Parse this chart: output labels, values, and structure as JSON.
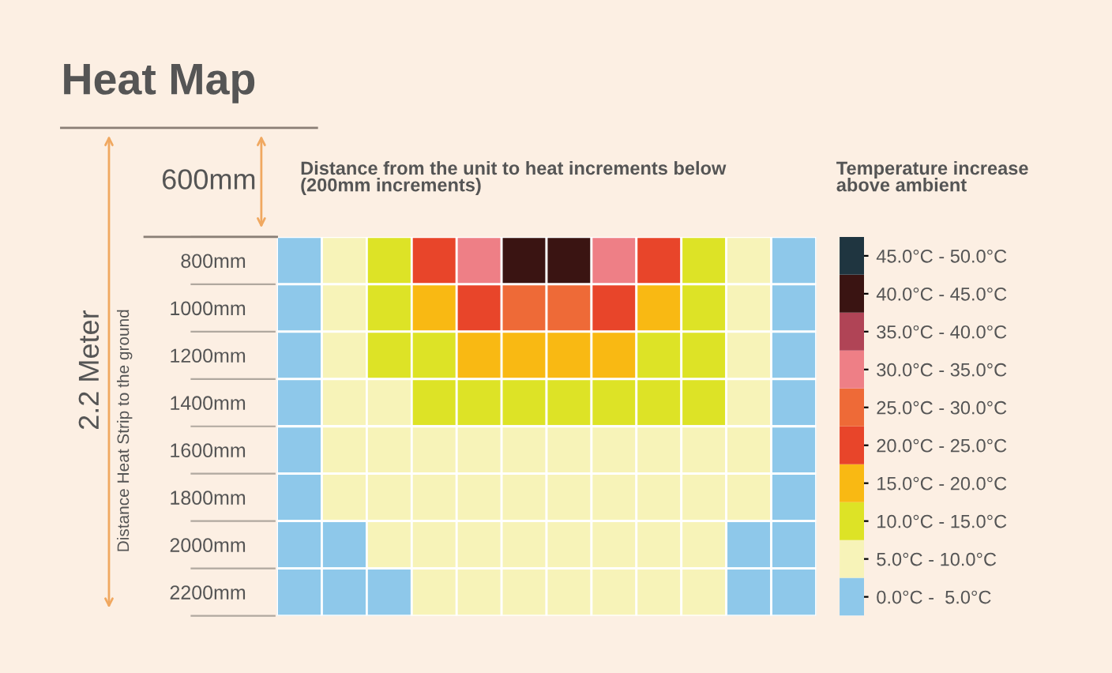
{
  "chart_data": {
    "type": "heatmap",
    "title": "Heat Map",
    "subtitle": "Distance from the unit to heat increments below\n(200mm increments)",
    "ylabel": "Distance Heat Strip to the ground",
    "clabel": "Temperature increase\nabove ambient",
    "annotations": [
      "600mm",
      "2.2 Meter"
    ],
    "categories": [
      null,
      null,
      null,
      null,
      null,
      null,
      null,
      null,
      null,
      null,
      null,
      null
    ],
    "y_categories": [
      "800mm",
      "1000mm",
      "1200mm",
      "1400mm",
      "1600mm",
      "1800mm",
      "2000mm",
      "2200mm"
    ],
    "cells": [
      [
        2.5,
        7.5,
        12.5,
        22.5,
        32.5,
        42.5,
        42.5,
        32.5,
        22.5,
        12.5,
        7.5,
        2.5
      ],
      [
        2.5,
        7.5,
        12.5,
        17.5,
        22.5,
        27.5,
        27.5,
        22.5,
        17.5,
        12.5,
        7.5,
        2.5
      ],
      [
        2.5,
        7.5,
        12.5,
        12.5,
        17.5,
        17.5,
        17.5,
        17.5,
        12.5,
        12.5,
        7.5,
        2.5
      ],
      [
        2.5,
        7.5,
        7.5,
        12.5,
        12.5,
        12.5,
        12.5,
        12.5,
        12.5,
        12.5,
        7.5,
        2.5
      ],
      [
        2.5,
        7.5,
        7.5,
        7.5,
        7.5,
        7.5,
        7.5,
        7.5,
        7.5,
        7.5,
        7.5,
        2.5
      ],
      [
        2.5,
        7.5,
        7.5,
        7.5,
        7.5,
        7.5,
        7.5,
        7.5,
        7.5,
        7.5,
        7.5,
        2.5
      ],
      [
        2.5,
        2.5,
        7.5,
        7.5,
        7.5,
        7.5,
        7.5,
        7.5,
        7.5,
        7.5,
        2.5,
        2.5
      ],
      [
        2.5,
        2.5,
        2.5,
        7.5,
        7.5,
        7.5,
        7.5,
        7.5,
        7.5,
        7.5,
        2.5,
        2.5
      ]
    ],
    "colors": [
      "#8ec8ea",
      "#f7f3b8",
      "#dde326",
      "#f9b913",
      "#e8452a",
      "#ee6a37",
      "#ee7f86",
      "#b04456",
      "#3a1412",
      "#1f3540"
    ],
    "clim": [
      0,
      50
    ],
    "cticks": [
      {
        "value": 2.5,
        "label": "0.0°C -  5.0°C"
      },
      {
        "value": 7.5,
        "label": "5.0°C - 10.0°C"
      },
      {
        "value": 12.5,
        "label": "10.0°C - 15.0°C"
      },
      {
        "value": 17.5,
        "label": "15.0°C - 20.0°C"
      },
      {
        "value": 22.5,
        "label": "20.0°C - 25.0°C"
      },
      {
        "value": 27.5,
        "label": "25.0°C - 30.0°C"
      },
      {
        "value": 32.5,
        "label": "30.0°C - 35.0°C"
      },
      {
        "value": 37.5,
        "label": "35.0°C - 40.0°C"
      },
      {
        "value": 42.5,
        "label": "40.0°C - 45.0°C"
      },
      {
        "value": 47.5,
        "label": "45.0°C - 50.0°C"
      }
    ]
  }
}
